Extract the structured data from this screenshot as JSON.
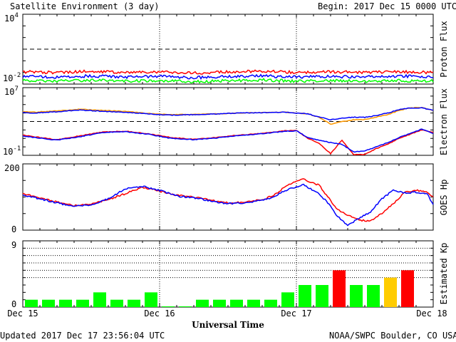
{
  "header": {
    "title": "Satellite Environment (3 day)",
    "begin": "Begin:  2017 Dec 15 0000 UTC"
  },
  "footer": {
    "updated": "Updated 2017 Dec 17 23:56:04 UTC",
    "credit": "NOAA/SWPC Boulder, CO USA"
  },
  "colors": {
    "red": "#ff0000",
    "blue": "#0000ff",
    "green": "#00ff00",
    "orange": "#ff9900",
    "yellow": "#ffcc00"
  },
  "chart_data": [
    {
      "type": "line",
      "panel": "proton",
      "ylabel": "Proton Flux",
      "ytick_labels": [
        {
          "base": "10",
          "exp": "4",
          "value": 4
        },
        {
          "base": "10",
          "exp": "-2",
          "value": -2
        }
      ],
      "yscale": "log",
      "ylim_log10": [
        -2,
        4
      ],
      "threshold_log10": 1,
      "x": [
        0,
        6,
        12,
        18,
        24,
        30,
        36,
        42,
        48,
        54,
        60,
        66,
        72
      ],
      "series": [
        {
          "color": "#ff0000",
          "values": [
            -0.95,
            -1.0,
            -0.9,
            -1.0,
            -0.95,
            -1.05,
            -0.95,
            -0.9,
            -1.0,
            -0.95,
            -1.0,
            -0.95,
            -1.0
          ]
        },
        {
          "color": "#0000ff",
          "values": [
            -1.35,
            -1.4,
            -1.3,
            -1.4,
            -1.35,
            -1.45,
            -1.35,
            -1.3,
            -1.4,
            -1.35,
            -1.4,
            -1.3,
            -1.4
          ]
        },
        {
          "color": "#00ff00",
          "values": [
            -1.7,
            -1.75,
            -1.65,
            -1.75,
            -1.7,
            -1.8,
            -1.7,
            -1.65,
            -1.75,
            -1.7,
            -1.75,
            -1.7,
            -1.75
          ]
        }
      ]
    },
    {
      "type": "line",
      "panel": "electron",
      "ylabel": "Electron Flux",
      "ytick_labels": [
        {
          "base": "10",
          "exp": "7",
          "value": 7
        },
        {
          "base": "10",
          "exp": "-1",
          "value": -1
        }
      ],
      "yscale": "log",
      "ylim_log10": [
        -1,
        7
      ],
      "threshold_log10": 3,
      "x": [
        0,
        2,
        6,
        10,
        14,
        18,
        22,
        26,
        30,
        34,
        38,
        42,
        46,
        48,
        50,
        52,
        54,
        56,
        58,
        60,
        62,
        64,
        66,
        68,
        70,
        72
      ],
      "series": [
        {
          "color": "#ff9900",
          "values": [
            4.2,
            4.1,
            4.25,
            4.45,
            4.3,
            4.2,
            3.95,
            3.8,
            3.85,
            3.9,
            4.0,
            4.05,
            4.1,
            4.0,
            3.9,
            3.5,
            2.7,
            3.0,
            3.2,
            3.25,
            3.5,
            3.8,
            4.3,
            4.6,
            4.65,
            4.3
          ]
        },
        {
          "color": "#0000ff",
          "values": [
            4.05,
            4.0,
            4.15,
            4.35,
            4.2,
            4.1,
            3.9,
            3.75,
            3.8,
            3.9,
            4.0,
            4.05,
            4.1,
            4.0,
            3.9,
            3.55,
            3.2,
            3.4,
            3.5,
            3.5,
            3.7,
            4.0,
            4.4,
            4.6,
            4.6,
            4.35
          ]
        },
        {
          "color": "#ff0000",
          "values": [
            1.4,
            1.2,
            0.85,
            1.3,
            1.75,
            1.85,
            1.55,
            1.1,
            0.9,
            1.1,
            1.4,
            1.6,
            1.9,
            1.95,
            1.0,
            0.4,
            -0.8,
            0.8,
            -0.9,
            -0.9,
            -0.2,
            0.3,
            1.0,
            1.5,
            2.0,
            1.7
          ]
        },
        {
          "color": "#0000ff",
          "values": [
            1.3,
            1.1,
            0.8,
            1.2,
            1.7,
            1.8,
            1.5,
            1.0,
            0.85,
            1.05,
            1.35,
            1.55,
            1.85,
            1.9,
            1.1,
            0.8,
            0.5,
            0.3,
            -0.6,
            -0.5,
            0.0,
            0.5,
            1.1,
            1.6,
            2.1,
            1.6
          ]
        }
      ]
    },
    {
      "type": "line",
      "panel": "hp",
      "ylabel": "GOES Hp",
      "ytick_labels": [
        "200",
        "0"
      ],
      "ylim": [
        0,
        200
      ],
      "x": [
        0,
        3,
        6,
        9,
        12,
        15,
        18,
        21,
        24,
        27,
        30,
        33,
        36,
        39,
        42,
        44,
        46,
        48,
        49,
        50,
        52,
        54,
        55,
        57,
        59,
        61,
        63,
        65,
        67,
        69,
        71,
        72
      ],
      "series": [
        {
          "color": "#ff0000",
          "values": [
            110,
            98,
            85,
            74,
            78,
            92,
            110,
            130,
            118,
            105,
            100,
            90,
            82,
            84,
            92,
            105,
            130,
            148,
            155,
            148,
            135,
            90,
            65,
            45,
            30,
            28,
            50,
            80,
            115,
            120,
            115,
            100
          ]
        },
        {
          "color": "#0000ff",
          "values": [
            105,
            95,
            82,
            72,
            76,
            95,
            125,
            132,
            120,
            103,
            98,
            88,
            80,
            83,
            90,
            100,
            120,
            130,
            138,
            130,
            110,
            72,
            45,
            15,
            35,
            55,
            95,
            120,
            112,
            115,
            110,
            75
          ]
        }
      ]
    },
    {
      "type": "bar",
      "panel": "kp",
      "ylabel": "Estimated Kp",
      "ytick_labels": [
        "9",
        "0"
      ],
      "ylim": [
        0,
        9
      ],
      "x_start_hour": 0,
      "bar_hours": 3,
      "values": [
        1,
        1,
        1,
        1,
        2,
        1,
        1,
        2,
        0.1,
        0.1,
        1,
        1,
        1,
        1,
        1,
        2,
        3,
        3,
        5,
        3,
        3,
        4,
        5
      ],
      "colors": [
        "#00ff00",
        "#00ff00",
        "#00ff00",
        "#00ff00",
        "#00ff00",
        "#00ff00",
        "#00ff00",
        "#00ff00",
        "#00ff00",
        "#00ff00",
        "#00ff00",
        "#00ff00",
        "#00ff00",
        "#00ff00",
        "#00ff00",
        "#00ff00",
        "#00ff00",
        "#00ff00",
        "#ff0000",
        "#00ff00",
        "#00ff00",
        "#ffcc00",
        "#ff0000"
      ],
      "grid_levels": [
        4,
        5,
        6,
        7,
        8
      ]
    }
  ],
  "x_axis": {
    "title": "Universal Time",
    "tick_labels": [
      "Dec 15",
      "Dec 16",
      "Dec 17",
      "Dec 18"
    ],
    "range_hours": [
      0,
      72
    ]
  }
}
